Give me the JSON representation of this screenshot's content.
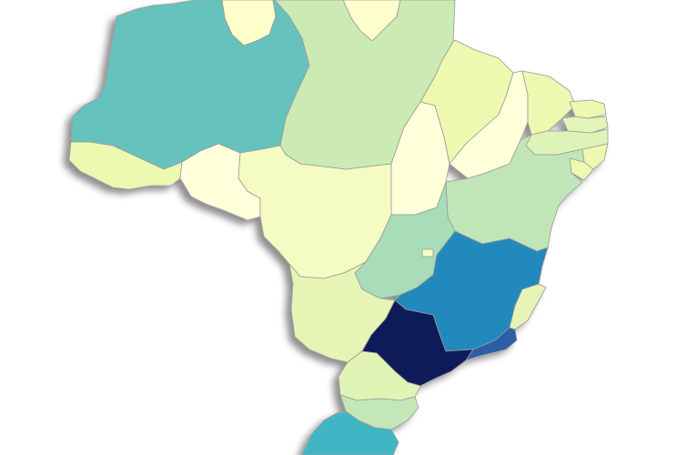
{
  "map": {
    "region": "Brazil",
    "type": "choropleth",
    "legend": null,
    "title": "",
    "colors": {
      "background": "#ffffff",
      "border": "#9a9a9a",
      "shadow": "#bdbdbd"
    },
    "states": [
      {
        "id": "RR",
        "fill": "#ffffcc"
      },
      {
        "id": "AP",
        "fill": "#ffffcc"
      },
      {
        "id": "AM",
        "fill": "#66c2bd"
      },
      {
        "id": "PA",
        "fill": "#cbeab4"
      },
      {
        "id": "AC",
        "fill": "#edf8b1"
      },
      {
        "id": "RO",
        "fill": "#ffffd9"
      },
      {
        "id": "MT",
        "fill": "#f4fbc3"
      },
      {
        "id": "TO",
        "fill": "#ffffd9"
      },
      {
        "id": "MA",
        "fill": "#edf8b1"
      },
      {
        "id": "PI",
        "fill": "#ffffd9"
      },
      {
        "id": "CE",
        "fill": "#edf8b1"
      },
      {
        "id": "RN",
        "fill": "#edf8b1"
      },
      {
        "id": "PB",
        "fill": "#e4f4b8"
      },
      {
        "id": "PE",
        "fill": "#dff2b8"
      },
      {
        "id": "AL",
        "fill": "#edf8b1"
      },
      {
        "id": "SE",
        "fill": "#edf8b1"
      },
      {
        "id": "BA",
        "fill": "#c0e6b8"
      },
      {
        "id": "GO",
        "fill": "#a9dcb8"
      },
      {
        "id": "DF",
        "fill": "#f4fbc3"
      },
      {
        "id": "MS",
        "fill": "#e6f5b5"
      },
      {
        "id": "MG",
        "fill": "#2289bc"
      },
      {
        "id": "ES",
        "fill": "#e6f5b5"
      },
      {
        "id": "SP",
        "fill": "#081d58"
      },
      {
        "id": "RJ",
        "fill": "#2a5ea8"
      },
      {
        "id": "PR",
        "fill": "#e2f3b6"
      },
      {
        "id": "SC",
        "fill": "#c3e7b7"
      },
      {
        "id": "RS",
        "fill": "#41b6c4"
      }
    ]
  }
}
